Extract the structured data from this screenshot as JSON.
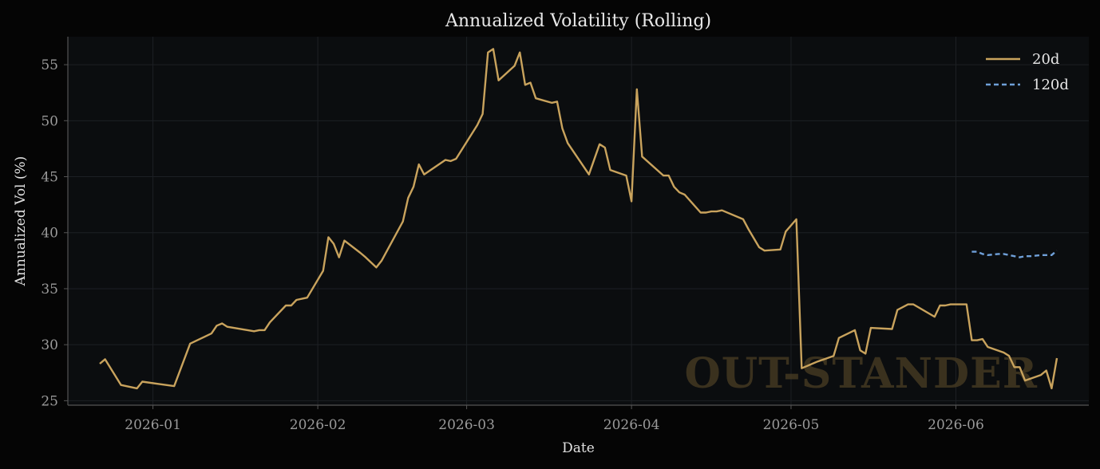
{
  "chart_data": {
    "type": "line",
    "title": "Annualized Volatility (Rolling)",
    "xlabel": "Date",
    "ylabel": "Annualized Vol (%)",
    "x_tick_labels": [
      "2026-01",
      "2026-02",
      "2026-03",
      "2026-04",
      "2026-05",
      "2026-06"
    ],
    "y_ticks": [
      25,
      30,
      35,
      40,
      45,
      50,
      55
    ],
    "xlim": [
      "2025-12-16",
      "2026-06-26"
    ],
    "ylim": [
      24.6,
      57.5
    ],
    "grid": true,
    "legend_position": "top-right",
    "watermark": "OUT-STANDER",
    "colors": {
      "background": "#050505",
      "plot_background": "#0b0d0f",
      "series_20d": "#c9a35d",
      "series_120d": "#6f9fd8",
      "grid": "#1d2024",
      "axis": "#555555"
    },
    "series": [
      {
        "name": "20d",
        "style": "solid",
        "points": [
          [
            "2025-12-22",
            28.3
          ],
          [
            "2025-12-23",
            28.7
          ],
          [
            "2025-12-26",
            26.4
          ],
          [
            "2025-12-29",
            26.1
          ],
          [
            "2025-12-30",
            26.7
          ],
          [
            "2026-01-02",
            26.5
          ],
          [
            "2026-01-05",
            26.3
          ],
          [
            "2026-01-08",
            30.1
          ],
          [
            "2026-01-12",
            31.0
          ],
          [
            "2026-01-13",
            31.7
          ],
          [
            "2026-01-14",
            31.9
          ],
          [
            "2026-01-15",
            31.6
          ],
          [
            "2026-01-20",
            31.2
          ],
          [
            "2026-01-21",
            31.3
          ],
          [
            "2026-01-22",
            31.3
          ],
          [
            "2026-01-23",
            32.0
          ],
          [
            "2026-01-26",
            33.5
          ],
          [
            "2026-01-27",
            33.5
          ],
          [
            "2026-01-28",
            34.0
          ],
          [
            "2026-01-30",
            34.2
          ],
          [
            "2026-02-02",
            36.6
          ],
          [
            "2026-02-03",
            39.6
          ],
          [
            "2026-02-04",
            39.0
          ],
          [
            "2026-02-05",
            37.8
          ],
          [
            "2026-02-06",
            39.3
          ],
          [
            "2026-02-09",
            38.2
          ],
          [
            "2026-02-10",
            37.8
          ],
          [
            "2026-02-12",
            36.9
          ],
          [
            "2026-02-13",
            37.5
          ],
          [
            "2026-02-17",
            41.0
          ],
          [
            "2026-02-18",
            43.1
          ],
          [
            "2026-02-19",
            44.1
          ],
          [
            "2026-02-20",
            46.1
          ],
          [
            "2026-02-21",
            45.2
          ],
          [
            "2026-02-25",
            46.5
          ],
          [
            "2026-02-26",
            46.4
          ],
          [
            "2026-02-27",
            46.6
          ],
          [
            "2026-03-03",
            49.6
          ],
          [
            "2026-03-04",
            50.6
          ],
          [
            "2026-03-05",
            56.1
          ],
          [
            "2026-03-06",
            56.4
          ],
          [
            "2026-03-07",
            53.6
          ],
          [
            "2026-03-10",
            54.9
          ],
          [
            "2026-03-11",
            56.1
          ],
          [
            "2026-03-12",
            53.2
          ],
          [
            "2026-03-13",
            53.4
          ],
          [
            "2026-03-14",
            52.0
          ],
          [
            "2026-03-17",
            51.6
          ],
          [
            "2026-03-18",
            51.7
          ],
          [
            "2026-03-19",
            49.3
          ],
          [
            "2026-03-20",
            48.0
          ],
          [
            "2026-03-24",
            45.2
          ],
          [
            "2026-03-26",
            47.9
          ],
          [
            "2026-03-27",
            47.6
          ],
          [
            "2026-03-28",
            45.6
          ],
          [
            "2026-03-31",
            45.1
          ],
          [
            "2026-04-01",
            42.8
          ],
          [
            "2026-04-02",
            52.8
          ],
          [
            "2026-04-03",
            46.8
          ],
          [
            "2026-04-07",
            45.1
          ],
          [
            "2026-04-08",
            45.1
          ],
          [
            "2026-04-09",
            44.1
          ],
          [
            "2026-04-10",
            43.6
          ],
          [
            "2026-04-11",
            43.4
          ],
          [
            "2026-04-14",
            41.8
          ],
          [
            "2026-04-15",
            41.8
          ],
          [
            "2026-04-16",
            41.9
          ],
          [
            "2026-04-17",
            41.9
          ],
          [
            "2026-04-18",
            42.0
          ],
          [
            "2026-04-22",
            41.2
          ],
          [
            "2026-04-23",
            40.3
          ],
          [
            "2026-04-25",
            38.7
          ],
          [
            "2026-04-26",
            38.4
          ],
          [
            "2026-04-29",
            38.5
          ],
          [
            "2026-04-30",
            40.1
          ],
          [
            "2026-05-02",
            41.2
          ],
          [
            "2026-05-03",
            27.9
          ],
          [
            "2026-05-06",
            28.5
          ],
          [
            "2026-05-09",
            29.0
          ],
          [
            "2026-05-10",
            30.6
          ],
          [
            "2026-05-13",
            31.3
          ],
          [
            "2026-05-14",
            29.5
          ],
          [
            "2026-05-15",
            29.2
          ],
          [
            "2026-05-16",
            31.5
          ],
          [
            "2026-05-20",
            31.4
          ],
          [
            "2026-05-21",
            33.1
          ],
          [
            "2026-05-23",
            33.6
          ],
          [
            "2026-05-24",
            33.6
          ],
          [
            "2026-05-28",
            32.5
          ],
          [
            "2026-05-29",
            33.5
          ],
          [
            "2026-05-30",
            33.5
          ],
          [
            "2026-05-31",
            33.6
          ],
          [
            "2026-06-03",
            33.6
          ],
          [
            "2026-06-04",
            30.4
          ],
          [
            "2026-06-05",
            30.4
          ],
          [
            "2026-06-06",
            30.5
          ],
          [
            "2026-06-07",
            29.8
          ],
          [
            "2026-06-10",
            29.3
          ],
          [
            "2026-06-11",
            29.0
          ],
          [
            "2026-06-12",
            28.0
          ],
          [
            "2026-06-13",
            28.0
          ],
          [
            "2026-06-14",
            26.8
          ],
          [
            "2026-06-17",
            27.3
          ],
          [
            "2026-06-18",
            27.7
          ],
          [
            "2026-06-19",
            26.1
          ],
          [
            "2026-06-20",
            28.8
          ]
        ]
      },
      {
        "name": "120d",
        "style": "dashed",
        "points": [
          [
            "2026-06-04",
            38.3
          ],
          [
            "2026-06-05",
            38.3
          ],
          [
            "2026-06-06",
            38.1
          ],
          [
            "2026-06-07",
            38.0
          ],
          [
            "2026-06-09",
            38.1
          ],
          [
            "2026-06-10",
            38.1
          ],
          [
            "2026-06-11",
            38.0
          ],
          [
            "2026-06-12",
            37.9
          ],
          [
            "2026-06-13",
            37.8
          ],
          [
            "2026-06-14",
            37.9
          ],
          [
            "2026-06-15",
            37.9
          ],
          [
            "2026-06-17",
            38.0
          ],
          [
            "2026-06-18",
            38.0
          ],
          [
            "2026-06-19",
            38.0
          ],
          [
            "2026-06-20",
            38.4
          ]
        ]
      }
    ]
  }
}
